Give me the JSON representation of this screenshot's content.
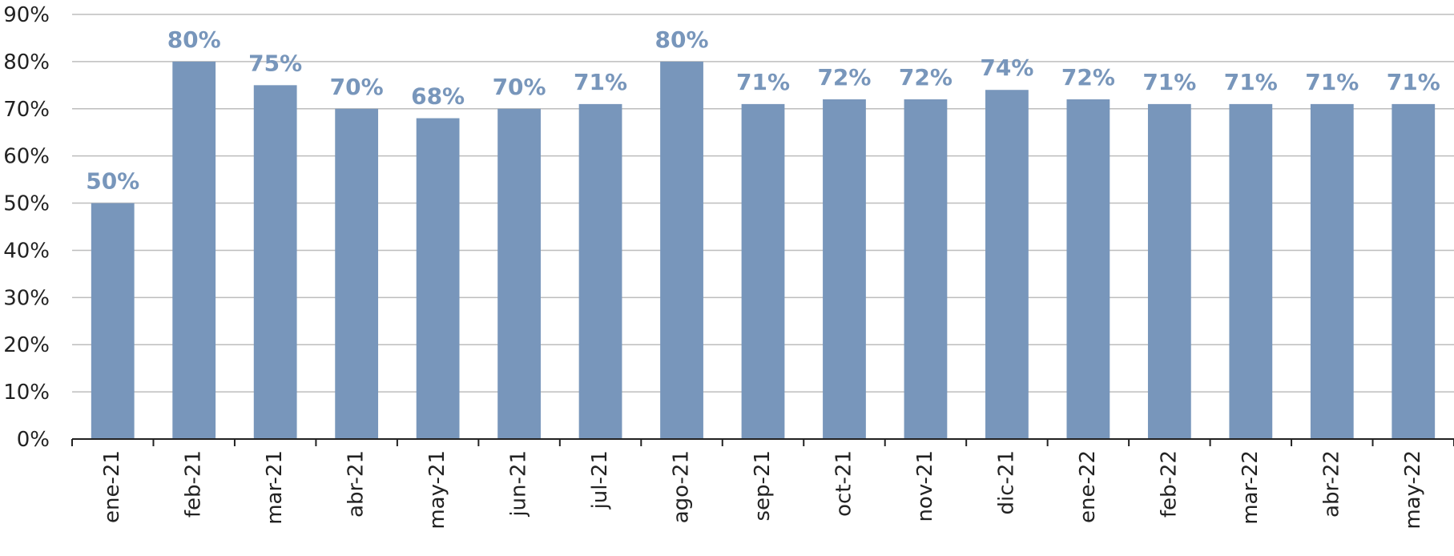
{
  "chart_data": {
    "type": "bar",
    "categories": [
      "ene-21",
      "feb-21",
      "mar-21",
      "abr-21",
      "may-21",
      "jun-21",
      "jul-21",
      "ago-21",
      "sep-21",
      "oct-21",
      "nov-21",
      "dic-21",
      "ene-22",
      "feb-22",
      "mar-22",
      "abr-22",
      "may-22"
    ],
    "values": [
      50,
      80,
      75,
      70,
      68,
      70,
      71,
      80,
      71,
      72,
      72,
      74,
      72,
      71,
      71,
      71,
      71
    ],
    "data_labels": [
      "50%",
      "80%",
      "75%",
      "70%",
      "68%",
      "70%",
      "71%",
      "80%",
      "71%",
      "72%",
      "72%",
      "74%",
      "72%",
      "71%",
      "71%",
      "71%",
      "71%"
    ],
    "y_ticks": [
      "0%",
      "10%",
      "20%",
      "30%",
      "40%",
      "50%",
      "60%",
      "70%",
      "80%",
      "90%"
    ],
    "ylim": [
      0,
      90
    ],
    "grid": true,
    "legend": "none",
    "bar_color": "#7896bb",
    "label_color": "#7896bb"
  }
}
